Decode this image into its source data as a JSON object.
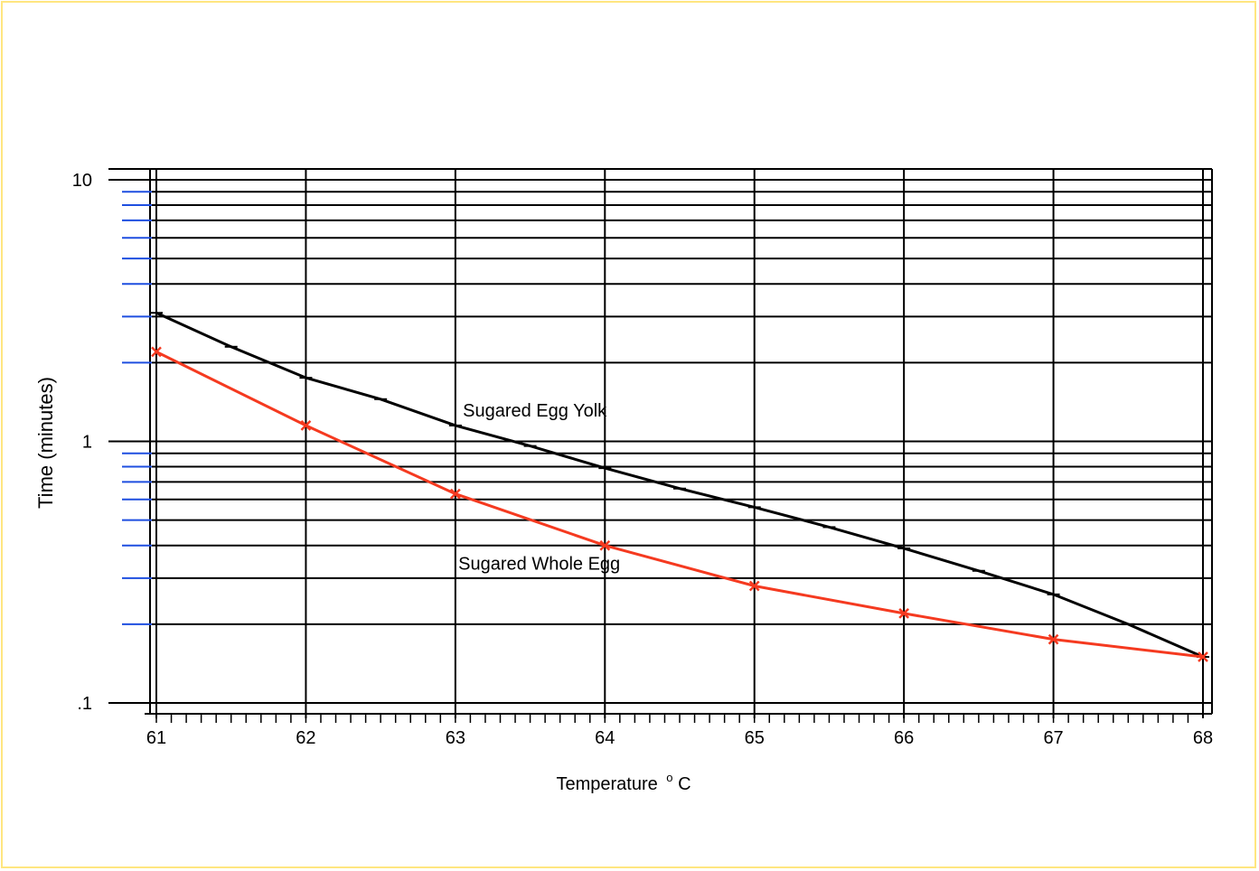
{
  "colors": {
    "frame_border": "#FFE680",
    "grid": "#000000",
    "minor_tick": "#1F4FE0",
    "series_yolk": "#000000",
    "series_whole": "#F53A20"
  },
  "chart_data": {
    "type": "line",
    "title": "",
    "xlabel": "Temperature",
    "xlabel_unit": "C",
    "xlabel_degree": "o",
    "ylabel": "Time (minutes)",
    "yscale": "log",
    "xlim": [
      61,
      68
    ],
    "ylim": [
      0.1,
      10
    ],
    "x_ticks": [
      61,
      62,
      63,
      64,
      65,
      66,
      67,
      68
    ],
    "y_ticks": [
      {
        "value": 0.1,
        "label": ".1"
      },
      {
        "value": 1,
        "label": "1"
      },
      {
        "value": 10,
        "label": "10"
      }
    ],
    "y_grid_minor": [
      0.2,
      0.3,
      0.4,
      0.5,
      0.6,
      0.7,
      0.8,
      0.9,
      2,
      3,
      4,
      5,
      6,
      7,
      8,
      9
    ],
    "grid": true,
    "legend": "none",
    "series": [
      {
        "name": "Sugared Egg Yolk",
        "color": "#000000",
        "marker": "tick",
        "x": [
          61,
          61.5,
          62,
          62.5,
          63,
          63.5,
          64,
          64.5,
          65,
          65.5,
          66,
          66.5,
          67,
          67.5,
          68
        ],
        "values": [
          3.1,
          2.3,
          1.75,
          1.45,
          1.15,
          0.96,
          0.79,
          0.66,
          0.56,
          0.47,
          0.39,
          0.32,
          0.26,
          0.2,
          0.15
        ]
      },
      {
        "name": "Sugared Whole Egg",
        "color": "#F53A20",
        "marker": "x",
        "x": [
          61,
          62,
          63,
          64,
          65,
          66,
          67,
          68
        ],
        "values": [
          2.2,
          1.15,
          0.63,
          0.4,
          0.28,
          0.22,
          0.175,
          0.15
        ]
      }
    ],
    "annotations": [
      {
        "text": "Sugared Egg Yolk",
        "series": 0
      },
      {
        "text": "Sugared Whole Egg",
        "series": 1
      }
    ]
  }
}
